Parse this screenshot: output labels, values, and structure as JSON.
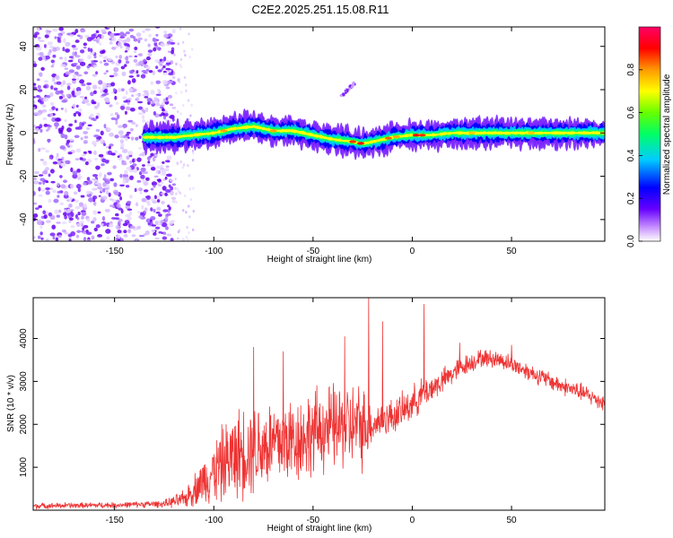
{
  "figure_title": "C2E2.2025.251.15.08.R11",
  "chart_data": [
    {
      "type": "heatmap",
      "title": "C2E2.2025.251.15.08.R11",
      "xlabel": "Height of straight line (km)",
      "ylabel": "Frequency (Hz)",
      "xlim": [
        -191,
        97
      ],
      "ylim": [
        -50,
        49
      ],
      "xticks": [
        -150,
        -100,
        -50,
        0,
        50
      ],
      "xtick_labels": [
        "-150",
        "-100",
        "-50",
        "0",
        "50"
      ],
      "yticks": [
        -40,
        -20,
        0,
        20,
        40
      ],
      "ytick_labels": [
        "-40",
        "-20",
        "0",
        "20",
        "40"
      ],
      "grid": false,
      "colorbar": {
        "label": "Normalized spectral amplitude",
        "range": [
          0,
          1
        ],
        "ticks": [
          0.0,
          0.2,
          0.4,
          0.6,
          0.8
        ],
        "tick_labels": [
          "0.0",
          "0.2",
          "0.4",
          "0.6",
          "0.8"
        ],
        "colors": [
          "#ffffff",
          "#cc99ff",
          "#6600ff",
          "#0000ff",
          "#00ccff",
          "#00ff66",
          "#66ff00",
          "#ffff00",
          "#ff9900",
          "#ff0000",
          "#ff0066"
        ]
      },
      "noise_region_x": [
        -191,
        -120
      ],
      "sparse_region_x": [
        -120,
        -110
      ],
      "ridge": {
        "x": [
          -135,
          -120,
          -110,
          -100,
          -90,
          -80,
          -70,
          -60,
          -50,
          -40,
          -30,
          -25,
          -20,
          -10,
          0,
          10,
          20,
          40,
          60,
          80,
          97
        ],
        "freq": [
          -2,
          -2,
          -1,
          0,
          2,
          3,
          1,
          1,
          -1,
          -3,
          -4,
          -5,
          -4,
          -2,
          -1,
          -1,
          0,
          0,
          0,
          0,
          0
        ]
      },
      "artifact": {
        "x": [
          -36,
          -29
        ],
        "freq": [
          17,
          23
        ]
      }
    },
    {
      "type": "line",
      "xlabel": "Height of straight line (km)",
      "ylabel": "SNR (10 * v/v)",
      "xlim": [
        -191,
        97
      ],
      "ylim": [
        0,
        4950
      ],
      "xticks": [
        -150,
        -100,
        -50,
        0,
        50
      ],
      "xtick_labels": [
        "-150",
        "-100",
        "-50",
        "0",
        "50"
      ],
      "yticks": [
        1000,
        2000,
        3000,
        4000
      ],
      "ytick_labels": [
        "1000",
        "2000",
        "3000",
        "4000"
      ],
      "grid": false,
      "series": [
        {
          "name": "SNR",
          "color": "#ee3333",
          "envelope_x": [
            -191,
            -150,
            -125,
            -115,
            -105,
            -95,
            -85,
            -75,
            -65,
            -55,
            -45,
            -35,
            -25,
            -21,
            -15,
            -5,
            5,
            15,
            25,
            35,
            45,
            55,
            65,
            75,
            85,
            97
          ],
          "envelope_mean": [
            100,
            120,
            150,
            250,
            700,
            1100,
            1400,
            1500,
            1600,
            1700,
            1900,
            1950,
            1950,
            2000,
            2100,
            2300,
            2700,
            3000,
            3350,
            3550,
            3500,
            3300,
            3100,
            2900,
            2750,
            2500
          ],
          "envelope_amp": [
            80,
            80,
            100,
            250,
            650,
            1100,
            1300,
            1300,
            1300,
            1200,
            1200,
            1200,
            1200,
            600,
            500,
            500,
            450,
            350,
            300,
            250,
            250,
            250,
            250,
            250,
            250,
            250
          ],
          "spikes": [
            {
              "x": -22,
              "y": 4950
            },
            {
              "x": 6,
              "y": 4800
            },
            {
              "x": -15,
              "y": 4400
            },
            {
              "x": -34,
              "y": 4050
            },
            {
              "x": -80,
              "y": 3800
            },
            {
              "x": -65,
              "y": 3700
            },
            {
              "x": 24,
              "y": 3900
            },
            {
              "x": 50,
              "y": 3850
            }
          ]
        }
      ]
    }
  ]
}
